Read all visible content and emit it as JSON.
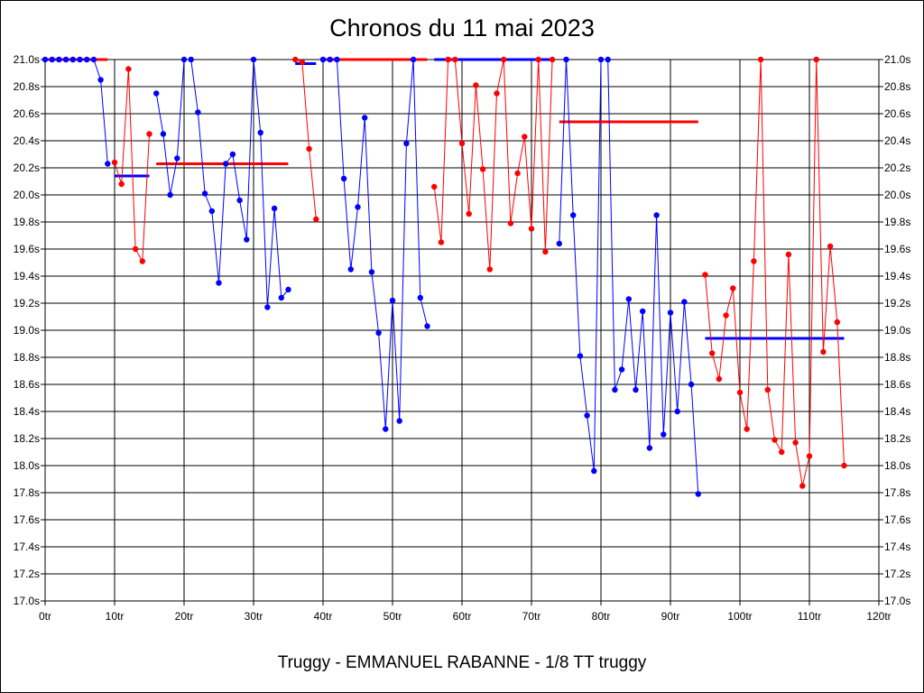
{
  "chart_data": {
    "type": "line",
    "title": "Chronos du 11 mai 2023",
    "caption": "Truggy - EMMANUEL RABANNE - 1/8 TT truggy",
    "xlim": [
      0,
      120
    ],
    "ylim": [
      17.0,
      21.0
    ],
    "x_tick_labels": [
      "0tr",
      "10tr",
      "20tr",
      "30tr",
      "40tr",
      "50tr",
      "60tr",
      "70tr",
      "80tr",
      "90tr",
      "100tr",
      "110tr",
      "120tr"
    ],
    "y_tick_labels": [
      "17.0s",
      "17.2s",
      "17.4s",
      "17.6s",
      "17.8s",
      "18.0s",
      "18.2s",
      "18.4s",
      "18.6s",
      "18.8s",
      "19.0s",
      "19.2s",
      "19.4s",
      "19.6s",
      "19.8s",
      "20.0s",
      "20.2s",
      "20.4s",
      "20.6s",
      "20.8s",
      "21.0s"
    ],
    "grid": true,
    "colors": {
      "blue": "#0000ff",
      "red": "#ff0000"
    },
    "series": [
      {
        "color": "blue",
        "points": [
          [
            0,
            21.0
          ],
          [
            1,
            21.0
          ],
          [
            2,
            21.0
          ],
          [
            3,
            21.0
          ],
          [
            4,
            21.0
          ],
          [
            5,
            21.0
          ],
          [
            6,
            21.0
          ],
          [
            7,
            21.0
          ],
          [
            8,
            20.85
          ],
          [
            9,
            20.23
          ]
        ]
      },
      {
        "color": "red",
        "points": [
          [
            10,
            20.24
          ],
          [
            11,
            20.08
          ],
          [
            12,
            20.93
          ],
          [
            13,
            19.6
          ],
          [
            14,
            19.51
          ],
          [
            15,
            20.45
          ]
        ]
      },
      {
        "color": "blue",
        "points": [
          [
            16,
            20.75
          ],
          [
            17,
            20.45
          ],
          [
            18,
            20.0
          ],
          [
            19,
            20.27
          ],
          [
            20,
            21.0
          ],
          [
            21,
            21.0
          ],
          [
            22,
            20.61
          ],
          [
            23,
            20.01
          ],
          [
            24,
            19.88
          ],
          [
            25,
            19.35
          ],
          [
            26,
            20.23
          ],
          [
            27,
            20.3
          ],
          [
            28,
            19.96
          ],
          [
            29,
            19.67
          ],
          [
            30,
            21.0
          ],
          [
            31,
            20.46
          ],
          [
            32,
            19.17
          ],
          [
            33,
            19.9
          ],
          [
            34,
            19.24
          ],
          [
            35,
            19.3
          ]
        ]
      },
      {
        "color": "red",
        "points": [
          [
            36,
            21.0
          ],
          [
            37,
            20.98
          ],
          [
            38,
            20.34
          ],
          [
            39,
            19.82
          ]
        ]
      },
      {
        "color": "blue",
        "points": [
          [
            40,
            21.0
          ],
          [
            41,
            21.0
          ],
          [
            42,
            21.0
          ],
          [
            43,
            20.12
          ],
          [
            44,
            19.45
          ],
          [
            45,
            19.91
          ],
          [
            46,
            20.57
          ],
          [
            47,
            19.43
          ],
          [
            48,
            18.98
          ],
          [
            49,
            18.27
          ],
          [
            50,
            19.22
          ],
          [
            51,
            18.33
          ],
          [
            52,
            20.38
          ],
          [
            53,
            21.0
          ],
          [
            54,
            19.24
          ],
          [
            55,
            19.03
          ]
        ]
      },
      {
        "color": "red",
        "points": [
          [
            56,
            20.06
          ],
          [
            57,
            19.65
          ],
          [
            58,
            21.0
          ],
          [
            59,
            21.0
          ],
          [
            60,
            20.38
          ],
          [
            61,
            19.86
          ],
          [
            62,
            20.81
          ],
          [
            63,
            20.19
          ],
          [
            64,
            19.45
          ],
          [
            65,
            20.75
          ],
          [
            66,
            21.0
          ],
          [
            67,
            19.79
          ],
          [
            68,
            20.16
          ],
          [
            69,
            20.43
          ],
          [
            70,
            19.75
          ],
          [
            71,
            21.0
          ],
          [
            72,
            19.58
          ],
          [
            73,
            21.0
          ]
        ]
      },
      {
        "color": "blue",
        "points": [
          [
            74,
            19.64
          ],
          [
            75,
            21.0
          ],
          [
            76,
            19.85
          ],
          [
            77,
            18.81
          ],
          [
            78,
            18.37
          ],
          [
            79,
            17.96
          ],
          [
            80,
            21.0
          ],
          [
            81,
            21.0
          ],
          [
            82,
            18.56
          ],
          [
            83,
            18.71
          ],
          [
            84,
            19.23
          ],
          [
            85,
            18.56
          ],
          [
            86,
            19.14
          ],
          [
            87,
            18.13
          ],
          [
            88,
            19.85
          ],
          [
            89,
            18.23
          ],
          [
            90,
            19.13
          ],
          [
            91,
            18.4
          ],
          [
            92,
            19.21
          ],
          [
            93,
            18.6
          ],
          [
            94,
            17.79
          ]
        ]
      },
      {
        "color": "red",
        "points": [
          [
            95,
            19.41
          ],
          [
            96,
            18.83
          ],
          [
            97,
            18.64
          ],
          [
            98,
            19.11
          ],
          [
            99,
            19.31
          ],
          [
            100,
            18.54
          ],
          [
            101,
            18.27
          ],
          [
            102,
            19.51
          ],
          [
            103,
            21.0
          ],
          [
            104,
            18.56
          ],
          [
            105,
            18.19
          ],
          [
            106,
            18.1
          ],
          [
            107,
            19.56
          ],
          [
            108,
            18.17
          ],
          [
            109,
            17.85
          ],
          [
            110,
            18.07
          ],
          [
            111,
            21.0
          ],
          [
            112,
            18.84
          ],
          [
            113,
            19.62
          ],
          [
            114,
            19.06
          ],
          [
            115,
            18.0
          ]
        ]
      }
    ],
    "averages": [
      {
        "color": "red",
        "x": [
          0,
          9
        ],
        "y": 21.0
      },
      {
        "color": "blue",
        "x": [
          10,
          15
        ],
        "y": 20.14
      },
      {
        "color": "red",
        "x": [
          16,
          35
        ],
        "y": 20.23
      },
      {
        "color": "blue",
        "x": [
          36,
          39
        ],
        "y": 20.97
      },
      {
        "color": "red",
        "x": [
          40,
          55
        ],
        "y": 21.0
      },
      {
        "color": "blue",
        "x": [
          56,
          73
        ],
        "y": 21.0
      },
      {
        "color": "red",
        "x": [
          74,
          94
        ],
        "y": 20.54
      },
      {
        "color": "blue",
        "x": [
          95,
          115
        ],
        "y": 18.94
      }
    ]
  }
}
